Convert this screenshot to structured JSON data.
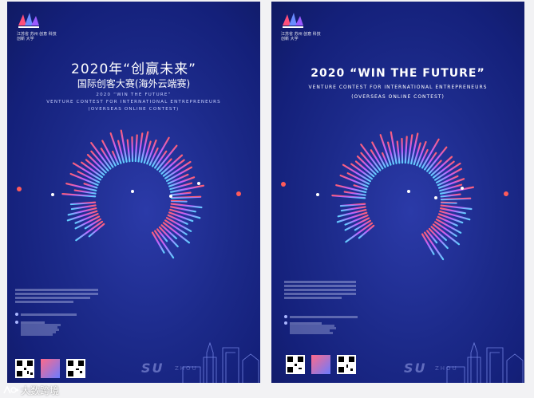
{
  "left_poster": {
    "logo_text": "江苏省 苏州 创意 科技 创新 大学",
    "title_cn": "2020年“创赢未来”",
    "subtitle_cn": "国际创客大赛(海外云端赛)",
    "title_en": "2020 “WIN THE FUTURE”",
    "subtitle_en": "VENTURE CONTEST FOR INTERNATIONAL ENTREPRENEURS",
    "subtitle_en2": "(OVERSEAS ONLINE CONTEST)"
  },
  "right_poster": {
    "logo_text": "江苏省 苏州 创意 科技 创新 大学",
    "title_en": "2020 “WIN THE FUTURE”",
    "subtitle_en": "VENTURE CONTEST FOR INTERNATIONAL ENTREPRENEURS",
    "subtitle_en2": "(OVERSEAS ONLINE CONTEST)"
  },
  "city": {
    "su": "SU",
    "zhou": "ZHOU"
  },
  "watermark": {
    "text": "大数跨境",
    "icon": "brand-logo-icon"
  },
  "colors": {
    "poster_bg": "#1c2a8a",
    "accent_red": "#ff5a5a",
    "accent_blue": "#6fd2ff"
  }
}
